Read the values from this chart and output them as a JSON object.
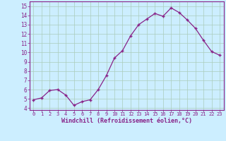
{
  "x": [
    0,
    1,
    2,
    3,
    4,
    5,
    6,
    7,
    8,
    9,
    10,
    11,
    12,
    13,
    14,
    15,
    16,
    17,
    18,
    19,
    20,
    21,
    22,
    23
  ],
  "y": [
    4.9,
    5.1,
    5.9,
    6.0,
    5.4,
    4.3,
    4.7,
    4.9,
    6.0,
    7.5,
    9.4,
    10.2,
    11.8,
    13.0,
    13.6,
    14.2,
    13.9,
    14.8,
    14.3,
    13.5,
    12.6,
    11.3,
    10.1,
    9.7
  ],
  "line_color": "#882288",
  "marker": "+",
  "marker_size": 3,
  "bg_color": "#cceeff",
  "grid_color": "#aaccbb",
  "xlabel": "Windchill (Refroidissement éolien,°C)",
  "yticks": [
    4,
    5,
    6,
    7,
    8,
    9,
    10,
    11,
    12,
    13,
    14,
    15
  ],
  "xlim": [
    -0.5,
    23.5
  ],
  "ylim": [
    3.8,
    15.5
  ]
}
